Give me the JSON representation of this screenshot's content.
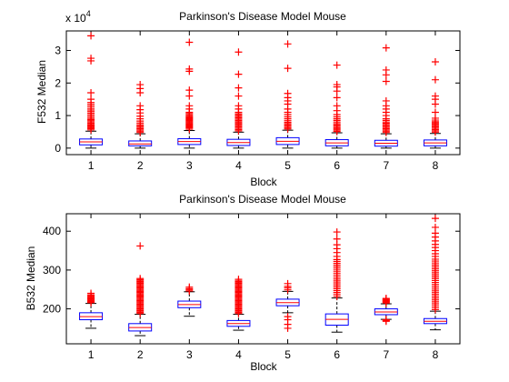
{
  "chart_data": [
    {
      "type": "boxplot",
      "title": "Parkinson's Disease Model Mouse",
      "xlabel": "Block",
      "ylabel": "F532 Median",
      "exponent_label": {
        "base": "x 10",
        "power": "4"
      },
      "categories": [
        "1",
        "2",
        "3",
        "4",
        "5",
        "6",
        "7",
        "8"
      ],
      "ylim": [
        -2000,
        36000
      ],
      "yticks": [
        {
          "value": 0,
          "label": "0"
        },
        {
          "value": 10000,
          "label": "1"
        },
        {
          "value": 20000,
          "label": "2"
        },
        {
          "value": 30000,
          "label": "3"
        }
      ],
      "grid": false,
      "box_color": "#0000ff",
      "median_color": "#ff0000",
      "whisker_color": "#000000",
      "outlier_color": "#ff0000",
      "boxes": [
        {
          "q1": 1000,
          "median": 1900,
          "q3": 2800,
          "lower_whisker": 0,
          "upper_whisker": 5200,
          "outliers": [
            5600,
            6000,
            6300,
            6600,
            6900,
            7200,
            7600,
            8000,
            8400,
            8800,
            9200,
            9700,
            10200,
            10700,
            11200,
            11700,
            12200,
            12800,
            13400,
            14000,
            15000,
            17000,
            26800,
            27600,
            34500
          ]
        },
        {
          "q1": 700,
          "median": 1300,
          "q3": 2200,
          "lower_whisker": 0,
          "upper_whisker": 4400,
          "outliers": [
            4800,
            5200,
            5600,
            6000,
            6400,
            6800,
            7200,
            7700,
            8300,
            9000,
            9800,
            10800,
            11800,
            13000,
            17000,
            18300,
            19500
          ]
        },
        {
          "q1": 1100,
          "median": 2000,
          "q3": 2900,
          "lower_whisker": 0,
          "upper_whisker": 5400,
          "outliers": [
            5800,
            6200,
            6500,
            6800,
            7100,
            7400,
            7700,
            8000,
            8300,
            8600,
            8900,
            9200,
            9500,
            9800,
            10200,
            10600,
            11000,
            12000,
            13000,
            16000,
            17800,
            23600,
            24300,
            32500
          ]
        },
        {
          "q1": 800,
          "median": 1700,
          "q3": 2700,
          "lower_whisker": 0,
          "upper_whisker": 4900,
          "outliers": [
            5300,
            5700,
            6100,
            6500,
            6900,
            7300,
            7700,
            8100,
            8500,
            8900,
            9300,
            9700,
            10100,
            10500,
            11000,
            12000,
            13000,
            16000,
            18500,
            22700,
            29500
          ]
        },
        {
          "q1": 1100,
          "median": 2100,
          "q3": 3200,
          "lower_whisker": 0,
          "upper_whisker": 5500,
          "outliers": [
            5900,
            6300,
            6700,
            7100,
            7500,
            7900,
            8400,
            9000,
            9600,
            10300,
            11000,
            12000,
            13500,
            14500,
            15500,
            16800,
            24500,
            32000
          ]
        },
        {
          "q1": 700,
          "median": 1600,
          "q3": 2600,
          "lower_whisker": 0,
          "upper_whisker": 4700,
          "outliers": [
            5100,
            5500,
            5900,
            6300,
            6700,
            7100,
            7500,
            8000,
            8500,
            9000,
            9600,
            10300,
            11500,
            13000,
            15500,
            17500,
            18800,
            19500,
            25500
          ]
        },
        {
          "q1": 600,
          "median": 1500,
          "q3": 2400,
          "lower_whisker": 0,
          "upper_whisker": 4400,
          "outliers": [
            4800,
            5200,
            5600,
            6000,
            6400,
            6800,
            7200,
            7600,
            8000,
            8500,
            9000,
            10000,
            11000,
            12000,
            13000,
            14500,
            20500,
            22500,
            24000,
            30800
          ]
        },
        {
          "q1": 700,
          "median": 1600,
          "q3": 2500,
          "lower_whisker": 0,
          "upper_whisker": 4500,
          "outliers": [
            4900,
            5300,
            5700,
            6100,
            6500,
            6900,
            7300,
            7700,
            8100,
            8600,
            9200,
            11000,
            13500,
            15000,
            16000,
            21000,
            26500
          ]
        }
      ]
    },
    {
      "type": "boxplot",
      "title": "Parkinson's Disease Model Mouse",
      "xlabel": "Block",
      "ylabel": "B532 Median",
      "categories": [
        "1",
        "2",
        "3",
        "4",
        "5",
        "6",
        "7",
        "8"
      ],
      "ylim": [
        110,
        445
      ],
      "yticks": [
        {
          "value": 200,
          "label": "200"
        },
        {
          "value": 300,
          "label": "300"
        },
        {
          "value": 400,
          "label": "400"
        }
      ],
      "grid": false,
      "box_color": "#0000ff",
      "median_color": "#ff0000",
      "whisker_color": "#000000",
      "outlier_color": "#ff0000",
      "boxes": [
        {
          "q1": 172,
          "median": 180,
          "q3": 190,
          "lower_whisker": 150,
          "upper_whisker": 214,
          "outliers": [
            216,
            218,
            220,
            222,
            224,
            226,
            228,
            230,
            233,
            236,
            240
          ]
        },
        {
          "q1": 143,
          "median": 152,
          "q3": 162,
          "lower_whisker": 131,
          "upper_whisker": 186,
          "outliers": [
            188,
            191,
            194,
            197,
            200,
            203,
            206,
            209,
            212,
            215,
            218,
            221,
            224,
            227,
            230,
            233,
            236,
            239,
            242,
            245,
            248,
            251,
            254,
            257,
            260,
            263,
            266,
            269,
            272,
            275,
            278,
            362
          ]
        },
        {
          "q1": 203,
          "median": 211,
          "q3": 220,
          "lower_whisker": 181,
          "upper_whisker": 244,
          "outliers": [
            246,
            249,
            252,
            256
          ]
        },
        {
          "q1": 155,
          "median": 162,
          "q3": 170,
          "lower_whisker": 145,
          "upper_whisker": 186,
          "outliers": [
            188,
            191,
            194,
            197,
            200,
            203,
            206,
            209,
            212,
            215,
            218,
            221,
            224,
            227,
            230,
            233,
            236,
            239,
            242,
            245,
            248,
            251,
            254,
            257,
            260,
            263,
            266,
            269,
            272,
            276
          ]
        },
        {
          "q1": 208,
          "median": 216,
          "q3": 225,
          "lower_whisker": 190,
          "upper_whisker": 245,
          "outliers": [
            150,
            160,
            172,
            180,
            249,
            254,
            258,
            265
          ]
        },
        {
          "q1": 158,
          "median": 173,
          "q3": 187,
          "lower_whisker": 140,
          "upper_whisker": 228,
          "outliers": [
            232,
            237,
            242,
            247,
            252,
            257,
            262,
            267,
            272,
            277,
            282,
            287,
            292,
            297,
            302,
            307,
            312,
            317,
            322,
            327,
            335,
            345,
            355,
            365,
            380,
            398
          ]
        },
        {
          "q1": 185,
          "median": 192,
          "q3": 200,
          "lower_whisker": 173,
          "upper_whisker": 213,
          "outliers": [
            168,
            170,
            172,
            215,
            217,
            219,
            221,
            223,
            225,
            227
          ]
        },
        {
          "q1": 162,
          "median": 168,
          "q3": 175,
          "lower_whisker": 146,
          "upper_whisker": 194,
          "outliers": [
            198,
            203,
            208,
            213,
            218,
            223,
            228,
            233,
            238,
            243,
            248,
            253,
            258,
            263,
            268,
            273,
            278,
            283,
            288,
            293,
            298,
            303,
            308,
            313,
            318,
            323,
            328,
            335,
            342,
            350,
            358,
            366,
            375,
            385,
            395,
            410,
            433
          ]
        }
      ]
    }
  ]
}
